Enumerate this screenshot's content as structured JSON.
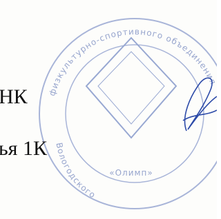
{
  "document": {
    "lines": [
      "НК",
      "ья 1К"
    ]
  },
  "stamp": {
    "outer_text": "физкультурно-спортивного объединения",
    "lower_text": "Вологодского",
    "inner_text": "«Олимп»"
  }
}
